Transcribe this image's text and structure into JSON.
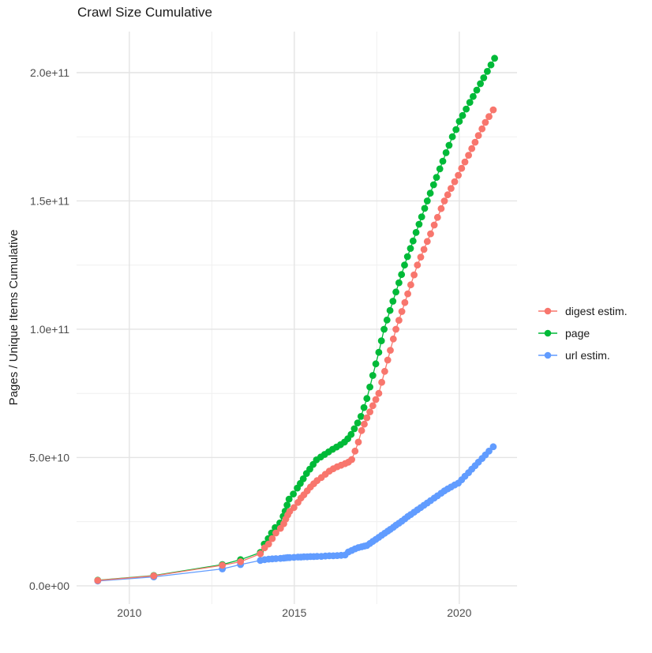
{
  "title": "Crawl Size Cumulative",
  "y_axis_title": "Pages / Unique Items Cumulative",
  "chart_data": {
    "type": "line",
    "title": "Crawl Size Cumulative",
    "xlabel": "",
    "ylabel": "Pages / Unique Items Cumulative",
    "value_unit": "billions (1e9)",
    "grid": "on",
    "legend_position": "right",
    "xlim": [
      2008.4,
      2021.75
    ],
    "ylim_billions": [
      -7.1,
      216
    ],
    "x_axis": {
      "ticks": [
        {
          "v": 2010,
          "label": "2010"
        },
        {
          "v": 2015,
          "label": "2015"
        },
        {
          "v": 2020,
          "label": "2020"
        }
      ],
      "minor": [
        2012.5,
        2017.5
      ]
    },
    "y_axis": {
      "ticks": [
        {
          "v": 0,
          "label": "0.0e+00"
        },
        {
          "v": 50,
          "label": "5.0e+10"
        },
        {
          "v": 100,
          "label": "1.0e+11"
        },
        {
          "v": 150,
          "label": "1.5e+11"
        },
        {
          "v": 200,
          "label": "2.0e+11"
        }
      ],
      "minor": [
        25,
        75,
        125,
        175
      ]
    },
    "series": [
      {
        "name": "digest estim.",
        "color": "#F8766D",
        "points": [
          [
            2009.04,
            2.1
          ],
          [
            2010.74,
            3.9
          ],
          [
            2012.82,
            8.0
          ],
          [
            2013.37,
            9.4
          ],
          [
            2013.97,
            12.5
          ],
          [
            2014.1,
            14.8
          ],
          [
            2014.22,
            16.3
          ],
          [
            2014.33,
            18.4
          ],
          [
            2014.44,
            20.6
          ],
          [
            2014.58,
            22.4
          ],
          [
            2014.68,
            24.2
          ],
          [
            2014.74,
            26.0
          ],
          [
            2014.8,
            27.6
          ],
          [
            2014.86,
            29.0
          ],
          [
            2014.99,
            30.5
          ],
          [
            2015.11,
            32.5
          ],
          [
            2015.2,
            34.2
          ],
          [
            2015.29,
            35.5
          ],
          [
            2015.39,
            37.0
          ],
          [
            2015.49,
            38.5
          ],
          [
            2015.59,
            39.8
          ],
          [
            2015.69,
            41.0
          ],
          [
            2015.82,
            42.2
          ],
          [
            2015.94,
            43.5
          ],
          [
            2016.06,
            44.7
          ],
          [
            2016.18,
            45.6
          ],
          [
            2016.3,
            46.4
          ],
          [
            2016.42,
            47.0
          ],
          [
            2016.54,
            47.6
          ],
          [
            2016.64,
            48.2
          ],
          [
            2016.74,
            49.2
          ],
          [
            2016.84,
            52.5
          ],
          [
            2016.94,
            56.0
          ],
          [
            2017.04,
            60.5
          ],
          [
            2017.12,
            63.0
          ],
          [
            2017.2,
            65.5
          ],
          [
            2017.29,
            67.8
          ],
          [
            2017.38,
            70.2
          ],
          [
            2017.47,
            72.6
          ],
          [
            2017.56,
            75.0
          ],
          [
            2017.65,
            79.3
          ],
          [
            2017.74,
            83.6
          ],
          [
            2017.83,
            88.0
          ],
          [
            2017.91,
            91.8
          ],
          [
            2018.0,
            96.2
          ],
          [
            2018.08,
            100.0
          ],
          [
            2018.17,
            103.5
          ],
          [
            2018.26,
            106.9
          ],
          [
            2018.35,
            110.4
          ],
          [
            2018.44,
            113.8
          ],
          [
            2018.53,
            117.3
          ],
          [
            2018.63,
            121.2
          ],
          [
            2018.73,
            125.0
          ],
          [
            2018.83,
            128.1
          ],
          [
            2018.93,
            131.1
          ],
          [
            2019.03,
            134.2
          ],
          [
            2019.13,
            137.2
          ],
          [
            2019.24,
            140.6
          ],
          [
            2019.34,
            143.6
          ],
          [
            2019.45,
            147.0
          ],
          [
            2019.55,
            150.0
          ],
          [
            2019.65,
            152.4
          ],
          [
            2019.75,
            154.9
          ],
          [
            2019.86,
            157.5
          ],
          [
            2019.97,
            160.0
          ],
          [
            2020.07,
            162.7
          ],
          [
            2020.17,
            165.2
          ],
          [
            2020.28,
            167.8
          ],
          [
            2020.38,
            170.4
          ],
          [
            2020.48,
            172.9
          ],
          [
            2020.58,
            175.5
          ],
          [
            2020.69,
            178.1
          ],
          [
            2020.79,
            180.6
          ],
          [
            2020.9,
            182.9
          ],
          [
            2021.03,
            185.5
          ]
        ]
      },
      {
        "name": "page",
        "color": "#00BA38",
        "points": [
          [
            2009.04,
            2.2
          ],
          [
            2010.74,
            4.0
          ],
          [
            2012.82,
            8.3
          ],
          [
            2013.37,
            10.2
          ],
          [
            2013.97,
            13.0
          ],
          [
            2014.09,
            16.3
          ],
          [
            2014.21,
            18.4
          ],
          [
            2014.31,
            20.6
          ],
          [
            2014.42,
            22.7
          ],
          [
            2014.56,
            24.5
          ],
          [
            2014.66,
            27.1
          ],
          [
            2014.72,
            29.1
          ],
          [
            2014.78,
            31.5
          ],
          [
            2014.84,
            33.8
          ],
          [
            2014.97,
            35.8
          ],
          [
            2015.09,
            38.1
          ],
          [
            2015.18,
            39.9
          ],
          [
            2015.27,
            41.7
          ],
          [
            2015.37,
            43.8
          ],
          [
            2015.47,
            45.5
          ],
          [
            2015.57,
            47.3
          ],
          [
            2015.67,
            49.1
          ],
          [
            2015.8,
            50.2
          ],
          [
            2015.92,
            51.2
          ],
          [
            2016.04,
            52.2
          ],
          [
            2016.16,
            53.2
          ],
          [
            2016.28,
            54.1
          ],
          [
            2016.4,
            55.0
          ],
          [
            2016.52,
            56.0
          ],
          [
            2016.62,
            57.3
          ],
          [
            2016.72,
            59.0
          ],
          [
            2016.82,
            61.2
          ],
          [
            2016.92,
            63.5
          ],
          [
            2017.02,
            66.0
          ],
          [
            2017.11,
            69.5
          ],
          [
            2017.2,
            73.0
          ],
          [
            2017.29,
            77.5
          ],
          [
            2017.38,
            82.0
          ],
          [
            2017.47,
            86.5
          ],
          [
            2017.56,
            91.0
          ],
          [
            2017.64,
            95.5
          ],
          [
            2017.72,
            100.0
          ],
          [
            2017.81,
            103.6
          ],
          [
            2017.9,
            107.3
          ],
          [
            2017.99,
            110.9
          ],
          [
            2018.08,
            114.5
          ],
          [
            2018.17,
            118.1
          ],
          [
            2018.25,
            121.3
          ],
          [
            2018.34,
            125.0
          ],
          [
            2018.43,
            128.3
          ],
          [
            2018.52,
            131.5
          ],
          [
            2018.6,
            134.4
          ],
          [
            2018.69,
            137.7
          ],
          [
            2018.78,
            140.9
          ],
          [
            2018.86,
            143.8
          ],
          [
            2018.95,
            147.1
          ],
          [
            2019.03,
            150.0
          ],
          [
            2019.12,
            153.0
          ],
          [
            2019.22,
            156.3
          ],
          [
            2019.31,
            159.2
          ],
          [
            2019.41,
            162.5
          ],
          [
            2019.5,
            165.5
          ],
          [
            2019.6,
            168.8
          ],
          [
            2019.69,
            171.7
          ],
          [
            2019.79,
            175.0
          ],
          [
            2019.9,
            177.8
          ],
          [
            2020.0,
            181.0
          ],
          [
            2020.1,
            183.3
          ],
          [
            2020.21,
            185.8
          ],
          [
            2020.32,
            188.4
          ],
          [
            2020.42,
            190.7
          ],
          [
            2020.53,
            193.2
          ],
          [
            2020.64,
            195.7
          ],
          [
            2020.74,
            198.0
          ],
          [
            2020.85,
            200.5
          ],
          [
            2020.96,
            203.0
          ],
          [
            2021.07,
            205.6
          ]
        ]
      },
      {
        "name": "url estim.",
        "color": "#619CFF",
        "points": [
          [
            2009.04,
            1.9
          ],
          [
            2010.74,
            3.5
          ],
          [
            2012.82,
            6.6
          ],
          [
            2013.37,
            8.3
          ],
          [
            2013.97,
            9.9
          ],
          [
            2014.1,
            10.2
          ],
          [
            2014.22,
            10.4
          ],
          [
            2014.33,
            10.5
          ],
          [
            2014.44,
            10.6
          ],
          [
            2014.58,
            10.7
          ],
          [
            2014.68,
            10.8
          ],
          [
            2014.74,
            10.9
          ],
          [
            2014.8,
            11.0
          ],
          [
            2014.86,
            11.0
          ],
          [
            2014.99,
            11.1
          ],
          [
            2015.11,
            11.2
          ],
          [
            2015.2,
            11.2
          ],
          [
            2015.29,
            11.3
          ],
          [
            2015.39,
            11.3
          ],
          [
            2015.49,
            11.4
          ],
          [
            2015.59,
            11.4
          ],
          [
            2015.69,
            11.5
          ],
          [
            2015.82,
            11.5
          ],
          [
            2015.94,
            11.6
          ],
          [
            2016.06,
            11.7
          ],
          [
            2016.18,
            11.7
          ],
          [
            2016.3,
            11.8
          ],
          [
            2016.42,
            11.9
          ],
          [
            2016.54,
            12.0
          ],
          [
            2016.64,
            13.2
          ],
          [
            2016.74,
            13.8
          ],
          [
            2016.84,
            14.4
          ],
          [
            2016.94,
            14.9
          ],
          [
            2017.04,
            15.2
          ],
          [
            2017.12,
            15.5
          ],
          [
            2017.2,
            15.7
          ],
          [
            2017.29,
            16.5
          ],
          [
            2017.38,
            17.3
          ],
          [
            2017.47,
            18.1
          ],
          [
            2017.56,
            18.9
          ],
          [
            2017.65,
            19.7
          ],
          [
            2017.74,
            20.5
          ],
          [
            2017.83,
            21.3
          ],
          [
            2017.91,
            22.0
          ],
          [
            2018.0,
            22.8
          ],
          [
            2018.08,
            23.6
          ],
          [
            2018.17,
            24.4
          ],
          [
            2018.26,
            25.2
          ],
          [
            2018.35,
            26.1
          ],
          [
            2018.44,
            27.0
          ],
          [
            2018.53,
            27.8
          ],
          [
            2018.63,
            28.7
          ],
          [
            2018.73,
            29.6
          ],
          [
            2018.83,
            30.5
          ],
          [
            2018.93,
            31.4
          ],
          [
            2019.03,
            32.3
          ],
          [
            2019.13,
            33.2
          ],
          [
            2019.24,
            34.2
          ],
          [
            2019.34,
            35.1
          ],
          [
            2019.45,
            36.1
          ],
          [
            2019.55,
            37.0
          ],
          [
            2019.65,
            37.8
          ],
          [
            2019.75,
            38.5
          ],
          [
            2019.86,
            39.3
          ],
          [
            2019.97,
            40.0
          ],
          [
            2020.07,
            41.3
          ],
          [
            2020.17,
            42.7
          ],
          [
            2020.28,
            44.1
          ],
          [
            2020.38,
            45.5
          ],
          [
            2020.48,
            46.8
          ],
          [
            2020.58,
            48.2
          ],
          [
            2020.69,
            49.6
          ],
          [
            2020.79,
            51.0
          ],
          [
            2020.9,
            52.5
          ],
          [
            2021.03,
            54.2
          ]
        ]
      }
    ]
  }
}
